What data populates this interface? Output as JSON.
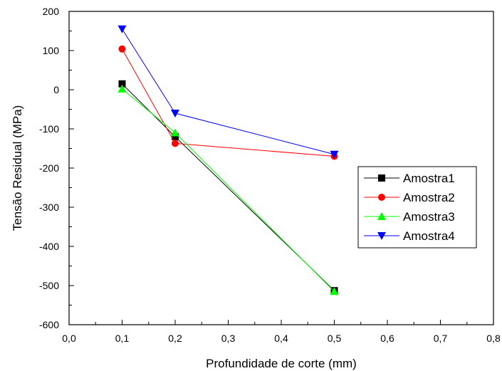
{
  "chart_data": {
    "type": "line",
    "xlabel": "Profundidade de corte (mm)",
    "ylabel": "Tensão Residual (MPa)",
    "xlim": [
      0.0,
      0.8
    ],
    "ylim": [
      -600,
      200
    ],
    "x_ticks": [
      "0,0",
      "0,1",
      "0,2",
      "0,3",
      "0,4",
      "0,5",
      "0,6",
      "0,7",
      "0,8"
    ],
    "y_ticks": [
      "200",
      "100",
      "0",
      "-100",
      "-200",
      "-300",
      "-400",
      "-500",
      "-600"
    ],
    "grid": false,
    "legend_position": "right",
    "x": [
      0.1,
      0.2,
      0.5
    ],
    "series": [
      {
        "name": "Amostra1",
        "color": "#000000",
        "marker": "square",
        "values": [
          15,
          -120,
          -513
        ]
      },
      {
        "name": "Amostra2",
        "color": "#ff0000",
        "marker": "circle",
        "values": [
          104,
          -137,
          -170
        ]
      },
      {
        "name": "Amostra3",
        "color": "#00ff00",
        "marker": "triangle-up",
        "values": [
          2,
          -110,
          -515
        ]
      },
      {
        "name": "Amostra4",
        "color": "#0000ff",
        "marker": "triangle-down",
        "values": [
          155,
          -60,
          -165
        ]
      }
    ]
  }
}
